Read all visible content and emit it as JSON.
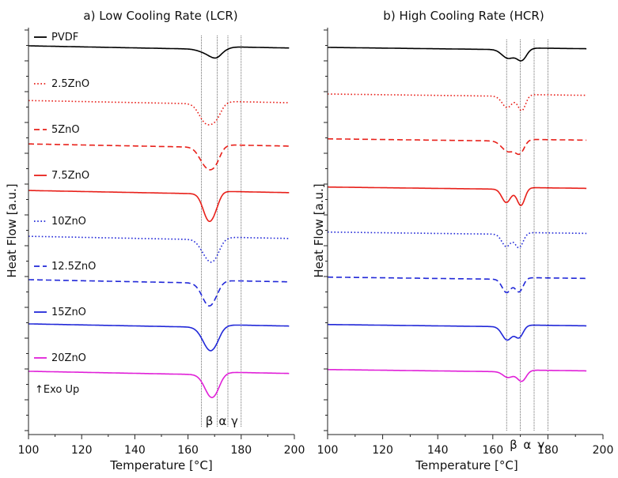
{
  "chart_data": [
    {
      "type": "line",
      "title": "a) Low Cooling Rate (LCR)",
      "xlabel": "Temperature [°C]",
      "ylabel": "Heat Flow [a.u.]",
      "xlim": [
        100,
        200
      ],
      "x_ticks": [
        "100",
        "120",
        "140",
        "160",
        "180",
        "200"
      ],
      "x_range_plotted": [
        100,
        198
      ],
      "y_axis_ticks": "unlabeled",
      "annotation": "↑Exo Up",
      "phase_lines": [
        {
          "x": 165,
          "label": "β"
        },
        {
          "x": 171,
          "label": "α"
        },
        {
          "x": 175,
          "label": "γ"
        },
        {
          "x": 180,
          "label": ""
        }
      ],
      "series": [
        {
          "name": "PVDF",
          "color": "#000000",
          "dash": "solid",
          "baseline": 1.0,
          "offset": 0.0,
          "peaks": [
            {
              "x": 170.5,
              "depth": 0.3,
              "width": 2.8
            },
            {
              "x": 165.5,
              "depth": 0.06,
              "width": 2.5
            }
          ]
        },
        {
          "name": "2.5ZnO",
          "color": "#e8201a",
          "dash": "dotted",
          "baseline": 0.0,
          "offset": -0.15,
          "peaks": [
            {
              "x": 166.5,
              "depth": 0.6,
              "width": 2.4
            },
            {
              "x": 170.5,
              "depth": 0.45,
              "width": 2.2
            }
          ]
        },
        {
          "name": "5ZnO",
          "color": "#e8201a",
          "dash": "dashed",
          "baseline": 0.0,
          "offset": -0.1,
          "peaks": [
            {
              "x": 166.5,
              "depth": 0.55,
              "width": 2.4
            },
            {
              "x": 170.0,
              "depth": 0.5,
              "width": 2.2
            }
          ]
        },
        {
          "name": "7.5ZnO",
          "color": "#e8201a",
          "dash": "solid",
          "baseline": 0.0,
          "offset": -0.05,
          "peaks": [
            {
              "x": 167.5,
              "depth": 0.8,
              "width": 2.0
            },
            {
              "x": 170.0,
              "depth": 0.35,
              "width": 1.8
            }
          ]
        },
        {
          "name": "10ZnO",
          "color": "#2128d8",
          "dash": "dotted",
          "baseline": 0.0,
          "offset": -0.05,
          "peaks": [
            {
              "x": 169.0,
              "depth": 0.75,
              "width": 2.6
            },
            {
              "x": 165.5,
              "depth": 0.15,
              "width": 2.0
            }
          ]
        },
        {
          "name": "12.5ZnO",
          "color": "#2128d8",
          "dash": "dashed",
          "baseline": 0.0,
          "offset": 0.0,
          "peaks": [
            {
              "x": 168.0,
              "depth": 0.8,
              "width": 2.6
            }
          ]
        },
        {
          "name": "15ZnO",
          "color": "#2128d8",
          "dash": "solid",
          "baseline": 0.0,
          "offset": 0.05,
          "peaks": [
            {
              "x": 168.5,
              "depth": 0.82,
              "width": 2.8
            }
          ]
        },
        {
          "name": "20ZnO",
          "color": "#e020d8",
          "dash": "solid",
          "baseline": 0.0,
          "offset": 0.05,
          "peaks": [
            {
              "x": 169.0,
              "depth": 0.8,
              "width": 2.6
            }
          ]
        }
      ]
    },
    {
      "type": "line",
      "title": "b) High Cooling Rate (HCR)",
      "xlabel": "Temperature [°C]",
      "ylabel": "Heat Flow  [a.u.]",
      "xlim": [
        100,
        200
      ],
      "x_ticks": [
        "100",
        "120",
        "140",
        "160",
        "180",
        "200"
      ],
      "x_range_plotted": [
        100,
        194
      ],
      "y_axis_ticks": "unlabeled",
      "phase_lines": [
        {
          "x": 165,
          "label": "β"
        },
        {
          "x": 170,
          "label": "α"
        },
        {
          "x": 175,
          "label": "γ"
        },
        {
          "x": 180,
          "label": ""
        }
      ],
      "series": [
        {
          "name": "PVDF",
          "color": "#000000",
          "dash": "solid",
          "offset": 0.0,
          "peaks": [
            {
              "x": 165.5,
              "depth": 0.45,
              "width": 2.2
            },
            {
              "x": 170.5,
              "depth": 0.55,
              "width": 1.8
            }
          ]
        },
        {
          "name": "2.5ZnO",
          "color": "#e8201a",
          "dash": "dotted",
          "offset": 0.0,
          "peaks": [
            {
              "x": 165.2,
              "depth": 0.6,
              "width": 1.8
            },
            {
              "x": 170.5,
              "depth": 0.75,
              "width": 1.4
            }
          ]
        },
        {
          "name": "5ZnO",
          "color": "#e8201a",
          "dash": "dashed",
          "offset": -0.05,
          "peaks": [
            {
              "x": 165.5,
              "depth": 0.55,
              "width": 2.2
            },
            {
              "x": 169.8,
              "depth": 0.6,
              "width": 1.6
            }
          ]
        },
        {
          "name": "7.5ZnO",
          "color": "#e8201a",
          "dash": "solid",
          "offset": -0.05,
          "peaks": [
            {
              "x": 164.9,
              "depth": 0.7,
              "width": 1.6
            },
            {
              "x": 170.2,
              "depth": 0.85,
              "width": 1.4
            }
          ]
        },
        {
          "name": "10ZnO",
          "color": "#2128d8",
          "dash": "dotted",
          "offset": -0.05,
          "peaks": [
            {
              "x": 164.9,
              "depth": 0.65,
              "width": 1.6
            },
            {
              "x": 169.5,
              "depth": 0.7,
              "width": 1.4
            }
          ]
        },
        {
          "name": "12.5ZnO",
          "color": "#2128d8",
          "dash": "dashed",
          "offset": -0.05,
          "peaks": [
            {
              "x": 165.0,
              "depth": 0.7,
              "width": 1.6
            },
            {
              "x": 169.5,
              "depth": 0.65,
              "width": 1.4
            }
          ]
        },
        {
          "name": "15ZnO",
          "color": "#2128d8",
          "dash": "solid",
          "offset": -0.05,
          "peaks": [
            {
              "x": 165.2,
              "depth": 0.7,
              "width": 1.8
            },
            {
              "x": 169.5,
              "depth": 0.55,
              "width": 1.4
            }
          ]
        },
        {
          "name": "20ZnO",
          "color": "#e020d8",
          "dash": "solid",
          "offset": -0.05,
          "peaks": [
            {
              "x": 165.5,
              "depth": 0.3,
              "width": 1.8
            },
            {
              "x": 170.5,
              "depth": 0.5,
              "width": 1.6
            }
          ]
        }
      ]
    }
  ]
}
